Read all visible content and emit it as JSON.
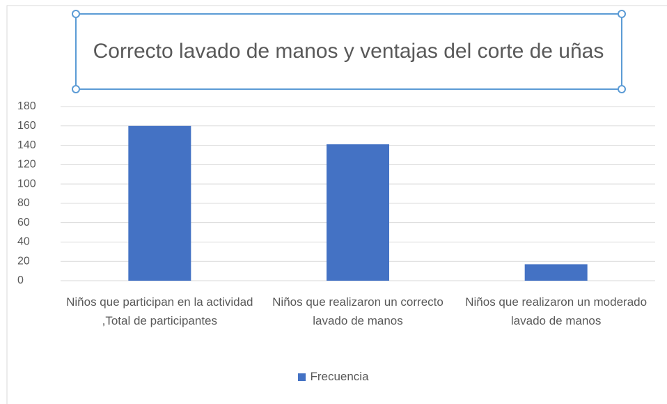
{
  "chart_data": {
    "type": "bar",
    "title": "Correcto lavado de manos y ventajas del corte de uñas",
    "categories": [
      "Niños que participan en la actividad ,Total de participantes",
      "Niños que realizaron un correcto lavado de manos",
      "Niños que realizaron un moderado lavado de manos"
    ],
    "series": [
      {
        "name": "Frecuencia",
        "color": "#4472c4",
        "values": [
          160,
          141,
          17
        ]
      }
    ],
    "ylim": [
      0,
      180
    ],
    "yticks": [
      0,
      20,
      40,
      60,
      80,
      100,
      120,
      140,
      160,
      180
    ],
    "grid": true,
    "legend": "bottom"
  }
}
